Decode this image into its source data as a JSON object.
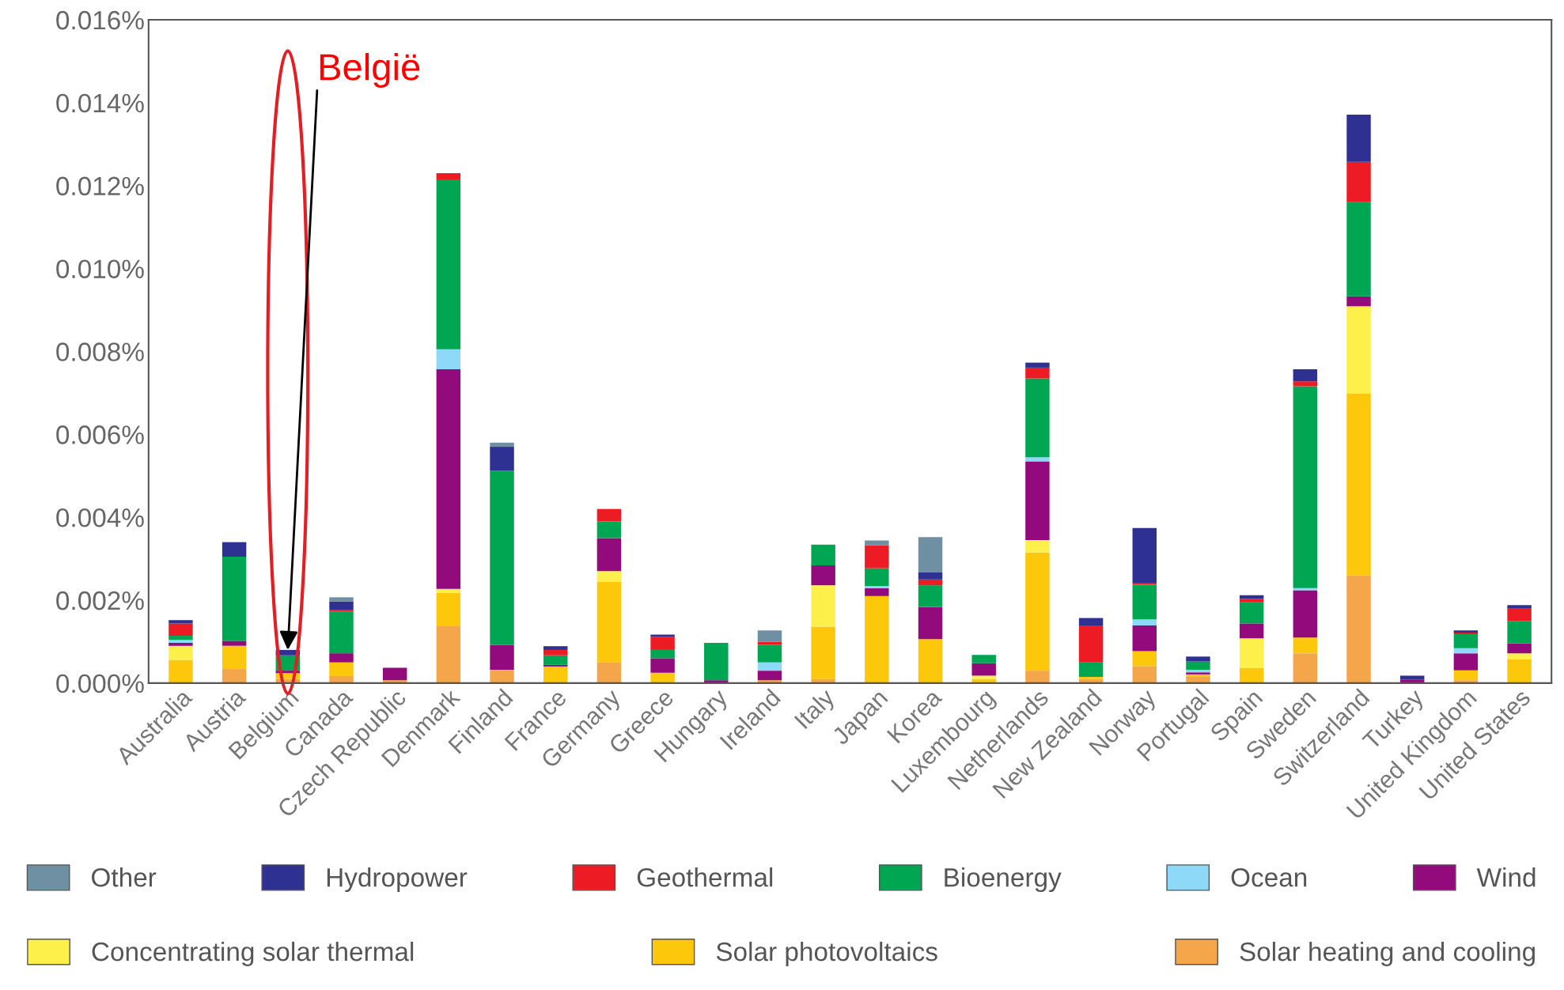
{
  "chart_data": {
    "type": "bar",
    "stacked": true,
    "legend": "bottom",
    "grid": false,
    "categories": [
      "Australia",
      "Austria",
      "Belgium",
      "Canada",
      "Czech Republic",
      "Denmark",
      "Finland",
      "France",
      "Germany",
      "Greece",
      "Hungary",
      "Ireland",
      "Italy",
      "Japan",
      "Korea",
      "Luxembourg",
      "Netherlands",
      "New Zealand",
      "Norway",
      "Portugal",
      "Spain",
      "Sweden",
      "Switzerland",
      "Turkey",
      "United Kingdom",
      "United States"
    ],
    "ylim": [
      0,
      0.016
    ],
    "yticks": [
      {
        "value": 0,
        "label": "0.000%"
      },
      {
        "value": 0.002,
        "label": "0.002%"
      },
      {
        "value": 0.004,
        "label": "0.004%"
      },
      {
        "value": 0.006,
        "label": "0.006%"
      },
      {
        "value": 0.008,
        "label": "0.008%"
      },
      {
        "value": 0.01,
        "label": "0.010%"
      },
      {
        "value": 0.012,
        "label": "0.012%"
      },
      {
        "value": 0.014,
        "label": "0.014%"
      },
      {
        "value": 0.016,
        "label": "0.016%"
      }
    ],
    "series": [
      {
        "name": "Solar heating and cooling",
        "color": "#f5a54a",
        "values": [
          0,
          0.00034,
          0.0001,
          0.00017,
          7e-05,
          0.00137,
          0.00032,
          0,
          0.0005,
          0,
          0,
          7e-05,
          0.0001,
          0,
          0,
          0,
          0.0003,
          0.0001,
          0.00041,
          0.00015,
          0,
          0.00072,
          0.0026,
          0,
          7e-05,
          0
        ]
      },
      {
        "name": "Solar photovoltaics",
        "color": "#fdc70c",
        "values": [
          0.00056,
          0.00056,
          0.00014,
          0.00033,
          0,
          0.0008,
          0,
          0.0004,
          0.00195,
          0.00025,
          0,
          0,
          0.00126,
          0.0021,
          0.00106,
          0.0001,
          0.00285,
          5e-05,
          0.00036,
          6e-05,
          0.00036,
          0.00038,
          0.00439,
          0,
          0.00024,
          0.00057
        ]
      },
      {
        "name": "Concentrating solar thermal",
        "color": "#fef04a",
        "values": [
          0.00034,
          0,
          0,
          0,
          0,
          0.0001,
          0,
          0,
          0.00025,
          0,
          0,
          0,
          0.001,
          0,
          0,
          8e-05,
          0.0003,
          0,
          0,
          0,
          0.00072,
          0,
          0.0021,
          0,
          0,
          0.00015
        ]
      },
      {
        "name": "Wind",
        "color": "#930a7d",
        "values": [
          7e-05,
          0.00012,
          6e-05,
          0.00022,
          0.0003,
          0.0053,
          0.0006,
          4e-05,
          0.0008,
          0.00035,
          7e-05,
          0.00023,
          0.00048,
          0.00019,
          0.00078,
          0.0003,
          0.0019,
          0,
          0.00062,
          5e-05,
          0.00036,
          0.00114,
          0.00024,
          8e-05,
          0.00041,
          0.00024
        ]
      },
      {
        "name": "Ocean",
        "color": "#8ed8f8",
        "values": [
          7e-05,
          0,
          0,
          0,
          0,
          0.00048,
          0,
          0,
          0,
          0,
          0,
          0.0002,
          0,
          5e-05,
          0,
          0,
          0.0001,
          0,
          0.00015,
          6e-05,
          0,
          5e-05,
          0,
          0,
          0.00012,
          0
        ]
      },
      {
        "name": "Bioenergy",
        "color": "#00a651",
        "values": [
          0.0001,
          0.00203,
          0.00037,
          0.001,
          0,
          0.0041,
          0.0042,
          0.00023,
          0.0004,
          0.0002,
          0.0009,
          0.00042,
          0.0005,
          0.00043,
          0.00052,
          0.0002,
          0.0019,
          0.00036,
          0.00083,
          0.0002,
          0.00052,
          0.00487,
          0.00227,
          0,
          0.00034,
          0.00054
        ]
      },
      {
        "name": "Geothermal",
        "color": "#ed1c24",
        "values": [
          0.0003,
          0,
          0,
          5e-05,
          0,
          0.00015,
          0,
          0.00013,
          0.0003,
          0.00032,
          0,
          8e-05,
          0,
          0.00055,
          0.00014,
          0,
          0.00026,
          0.00088,
          5e-05,
          0,
          7e-05,
          0.00012,
          0.00097,
          0,
          4e-05,
          0.00031
        ]
      },
      {
        "name": "Hydropower",
        "color": "#2e3192",
        "values": [
          8e-05,
          0.00035,
          0.00013,
          0.0002,
          0,
          0,
          0.00058,
          9e-05,
          0,
          5e-05,
          0,
          0,
          0,
          0,
          0.00017,
          0,
          0.00012,
          0.00018,
          0.00132,
          0.00012,
          9e-05,
          0.00029,
          0.00114,
          0.0001,
          5e-05,
          7e-05
        ]
      },
      {
        "name": "Other",
        "color": "#6f8fa3",
        "values": [
          0,
          0,
          0,
          0.0001,
          0,
          0,
          0.0001,
          0,
          0,
          0,
          0,
          0.00027,
          0,
          0.00012,
          0.00085,
          0,
          0,
          0,
          0,
          0,
          0,
          0,
          0,
          0,
          0,
          0
        ]
      }
    ],
    "annotations": [
      {
        "text": "België",
        "x": "Belgium",
        "y": 0.0008
      }
    ]
  }
}
